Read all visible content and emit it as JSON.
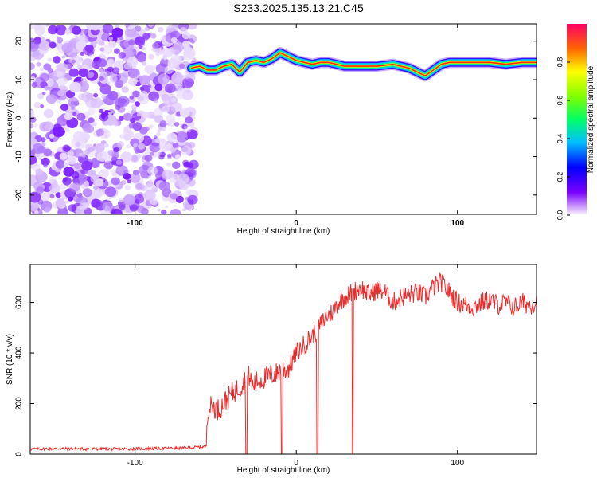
{
  "title": "S233.2025.135.13.21.C45",
  "chart_data": [
    {
      "type": "heatmap",
      "xlabel": "Height of straight line (km)",
      "ylabel": "Frequency (Hz)",
      "xlim": [
        -165,
        149
      ],
      "ylim": [
        -25,
        24.5
      ],
      "x_ticks": [
        -100,
        0,
        100
      ],
      "y_ticks": [
        -20,
        -10,
        0,
        10,
        20
      ],
      "x_tick_labels": [
        "-100",
        "0",
        "100"
      ],
      "y_tick_labels": [
        "-20",
        "-10",
        "0",
        "10",
        "20"
      ],
      "noise_region_x": [
        -165,
        -65
      ],
      "ridge": {
        "x": [
          -65,
          -60,
          -55,
          -50,
          -45,
          -40,
          -35,
          -30,
          -25,
          -20,
          -15,
          -10,
          -5,
          0,
          5,
          10,
          15,
          20,
          25,
          30,
          40,
          50,
          60,
          65,
          70,
          75,
          80,
          85,
          90,
          95,
          100,
          110,
          120,
          130,
          140,
          149
        ],
        "freq_hz": [
          13,
          13.5,
          12.5,
          12.5,
          13.5,
          14,
          12,
          14.5,
          15,
          14.5,
          15.5,
          17,
          16,
          15,
          14.5,
          14,
          14.5,
          14.5,
          14,
          13.5,
          13.5,
          13.5,
          14,
          13.5,
          13,
          12,
          11,
          12.5,
          14,
          14.5,
          14.5,
          14.5,
          14.5,
          14,
          14.5,
          14.5
        ]
      },
      "colorbar": {
        "label": "Normalized spectral amplitude",
        "range": [
          0,
          1
        ],
        "ticks": [
          0.0,
          0.2,
          0.4,
          0.6,
          0.8
        ],
        "tick_labels": [
          "0.0",
          "0.2",
          "0.4",
          "0.6",
          "0.8"
        ]
      }
    },
    {
      "type": "line",
      "xlabel": "Height of straight line (km)",
      "ylabel": "SNR (10 * v/v)",
      "xlim": [
        -165,
        149
      ],
      "ylim": [
        0,
        750
      ],
      "x_ticks": [
        -100,
        0,
        100
      ],
      "y_ticks": [
        0,
        200,
        400,
        600
      ],
      "x_tick_labels": [
        "-100",
        "0",
        "100"
      ],
      "y_tick_labels": [
        "0",
        "200",
        "400",
        "600"
      ],
      "color": "#ee2b2b",
      "series": [
        {
          "x": [
            -165,
            -150,
            -130,
            -110,
            -90,
            -70,
            -56,
            -55,
            -52,
            -48,
            -44,
            -40,
            -36,
            -33,
            -31,
            -29,
            -27,
            -24,
            -20,
            -16,
            -12,
            -9,
            -6,
            -3,
            0,
            3,
            6,
            10,
            14,
            18,
            22,
            26,
            30,
            35,
            40,
            45,
            50,
            55,
            60,
            65,
            70,
            75,
            80,
            85,
            90,
            95,
            100,
            105,
            110,
            115,
            120,
            125,
            130,
            135,
            140,
            145,
            149
          ],
          "y": [
            20,
            22,
            21,
            20,
            22,
            24,
            30,
            180,
            190,
            175,
            210,
            240,
            260,
            280,
            300,
            310,
            270,
            290,
            300,
            310,
            320,
            340,
            330,
            360,
            400,
            420,
            440,
            470,
            500,
            540,
            560,
            600,
            620,
            640,
            660,
            630,
            650,
            640,
            600,
            620,
            630,
            640,
            620,
            660,
            680,
            640,
            600,
            590,
            580,
            600,
            610,
            590,
            600,
            580,
            600,
            590,
            600
          ]
        }
      ],
      "dropouts": [
        {
          "x": -31,
          "y": 0
        },
        {
          "x": -9,
          "y": 0
        },
        {
          "x": 13,
          "y": 0
        },
        {
          "x": 35,
          "y": 0
        }
      ]
    }
  ]
}
